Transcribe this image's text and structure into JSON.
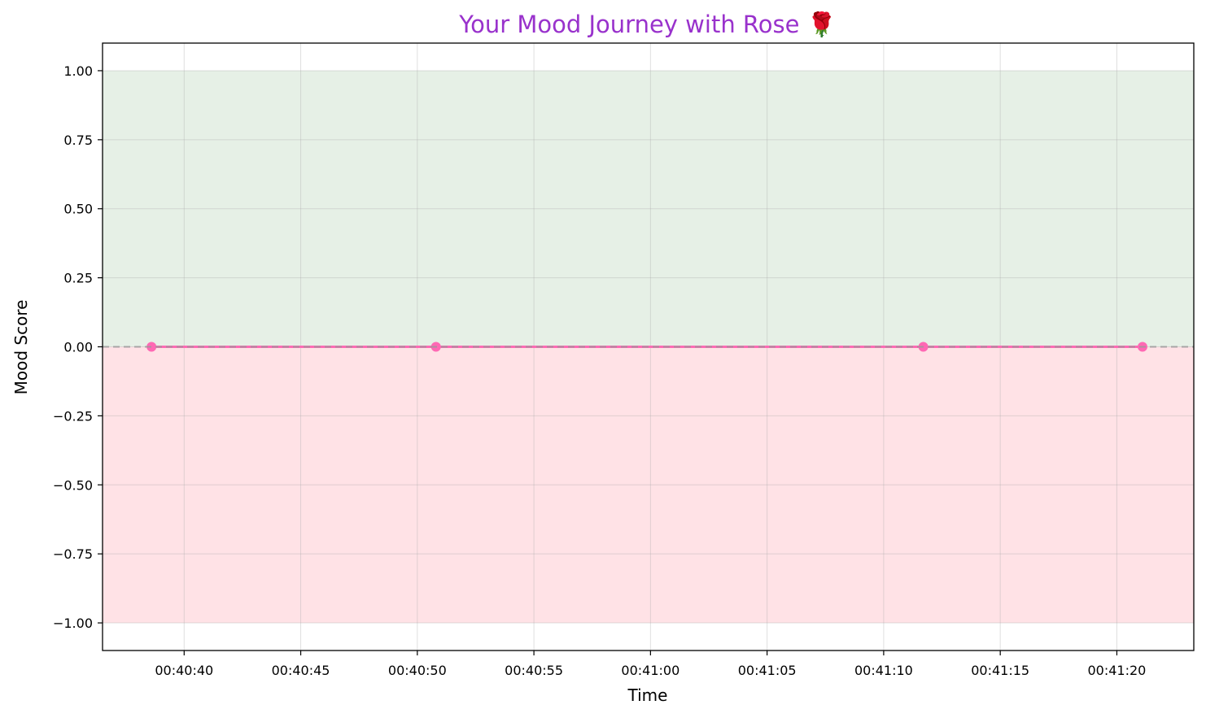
{
  "chart_data": {
    "type": "line",
    "title": "Your Mood Journey with Rose 🌹",
    "xlabel": "Time",
    "ylabel": "Mood Score",
    "x_type": "time",
    "xlim": [
      "00:40:36.5",
      "00:41:23.3"
    ],
    "ylim": [
      -1.1,
      1.1
    ],
    "x_ticks": [
      "00:40:40",
      "00:40:45",
      "00:40:50",
      "00:40:55",
      "00:41:00",
      "00:41:05",
      "00:41:10",
      "00:41:15",
      "00:41:20"
    ],
    "y_ticks": [
      1.0,
      0.75,
      0.5,
      0.25,
      0.0,
      -0.25,
      -0.5,
      -0.75,
      -1.0
    ],
    "y_tick_labels": [
      "1.00",
      "0.75",
      "0.50",
      "0.25",
      "0.00",
      "−0.25",
      "−0.50",
      "−0.75",
      "−1.00"
    ],
    "grid": true,
    "series": [
      {
        "x": [
          "00:40:38.6",
          "00:40:50.8",
          "00:41:11.7",
          "00:41:21.1"
        ],
        "y": [
          0,
          0,
          0,
          0
        ],
        "color": "#ff69b4",
        "marker": "circle"
      }
    ],
    "bands": [
      {
        "from": 0,
        "to": 1,
        "color": "#e6f0e6"
      },
      {
        "from": -1,
        "to": 0,
        "color": "#ffe2e6"
      }
    ],
    "reference_line": {
      "y": 0,
      "style": "dashed",
      "color": "#999999"
    },
    "title_color": "#9932cc"
  }
}
